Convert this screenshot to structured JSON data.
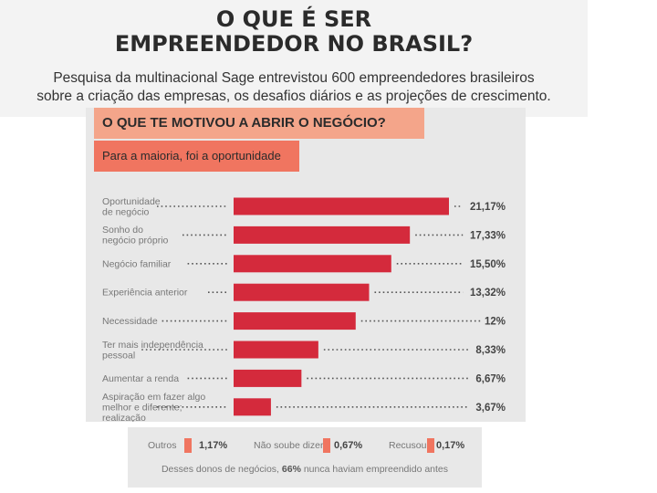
{
  "header": {
    "title_lines": [
      "O QUE É SER",
      "EMPREENDEDOR NO BRASIL?"
    ],
    "subtitle_lines": [
      "Pesquisa da multinacional Sage entrevistou 600 empreendedores brasileiros",
      "sobre a criação das empresas, os desafios diários e as projeções de crescimento."
    ]
  },
  "question": "O QUE TE MOTIVOU A ABRIR O NEGÓCIO?",
  "answer": "Para a maioria, foi a oportunidade",
  "chart_data": {
    "type": "bar",
    "orientation": "horizontal",
    "title": "O QUE TE MOTIVOU A ABRIR O NEGÓCIO?",
    "unit": "%",
    "categories": [
      [
        "Oportunidade",
        "de negócio"
      ],
      [
        "Sonho do",
        "negócio próprio"
      ],
      [
        "Negócio familiar"
      ],
      [
        "Experiência anterior"
      ],
      [
        "Necessidade"
      ],
      [
        "Ter mais independência",
        "pessoal"
      ],
      [
        "Aumentar a renda"
      ],
      [
        "Aspiração em fazer algo",
        "melhor e diferente;",
        "realização"
      ]
    ],
    "values": [
      21.17,
      17.33,
      15.5,
      13.32,
      12,
      8.33,
      6.67,
      3.67
    ],
    "value_labels": [
      "21,17%",
      "17,33%",
      "15,50%",
      "13,32%",
      "12%",
      "8,33%",
      "6,67%",
      "3,67%"
    ],
    "xlim": [
      0,
      21.17
    ]
  },
  "footer": {
    "items": [
      {
        "label": "Outros",
        "value": "1,17%"
      },
      {
        "label": "Não soube dizer",
        "value": "0,67%"
      },
      {
        "label": "Recusou",
        "value": "0,17%"
      }
    ],
    "note_before": "Desses donos de negócios,",
    "note_highlight": "66%",
    "note_after": "nunca haviam empreendido antes",
    "accent_color": "#f07560"
  },
  "colors": {
    "bar": "#d42a3c",
    "question_bg": "#f4a58a",
    "answer_bg": "#f07560",
    "panel_bg": "#e8e8e8"
  }
}
